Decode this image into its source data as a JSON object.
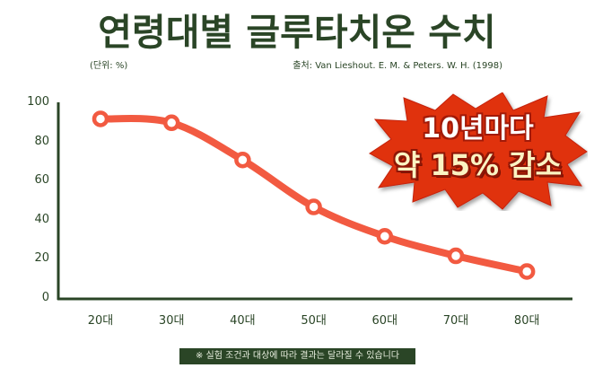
{
  "header": {
    "title": "연령대별 글루타치온 수치",
    "unit": "(단위: %)",
    "source": "출처: Van Lieshout. E. M. & Peters. W. H. (1998)"
  },
  "callout": {
    "line1": "10년마다",
    "line2": "약 15% 감소"
  },
  "footnote": "※ 실험 조건과 대상에 따라 결과는 달라질 수 있습니다",
  "colors": {
    "primary": "#2a4526",
    "line": "#f25a41",
    "burst": "#e0300f"
  },
  "chart_data": {
    "type": "line",
    "title": "연령대별 글루타치온 수치",
    "xlabel": "",
    "ylabel": "(단위: %)",
    "categories": [
      "20대",
      "30대",
      "40대",
      "50대",
      "60대",
      "70대",
      "80대"
    ],
    "series": [
      {
        "name": "글루타치온 수치",
        "values": [
          92,
          90,
          71,
          47,
          32,
          22,
          14
        ]
      }
    ],
    "yticks": [
      "0",
      "20",
      "40",
      "60",
      "80",
      "100"
    ],
    "ylim": [
      0,
      100
    ],
    "grid": false,
    "legend": "none",
    "annotations": [
      "10년마다 약 15% 감소"
    ],
    "source": "Van Lieshout. E. M. & Peters. W. H. (1998)"
  }
}
